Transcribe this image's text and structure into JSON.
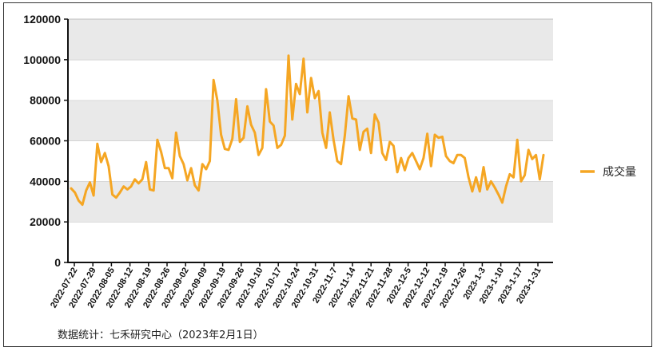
{
  "footnote": "数据统计：七禾研究中心（2023年2月1日）",
  "chart_data": {
    "type": "line",
    "title": "",
    "xlabel": "",
    "ylabel": "",
    "ylim": [
      0,
      120000
    ],
    "yticks": [
      0,
      20000,
      40000,
      60000,
      80000,
      100000,
      120000
    ],
    "ytick_labels": [
      "0",
      "20000",
      "40000",
      "60000",
      "80000",
      "100000",
      "120000"
    ],
    "grid": "horizontal bands",
    "legend_position": "right",
    "x_tick_labels": [
      "2022-07-22",
      "2022-07-29",
      "2022-08-05",
      "2022-08-12",
      "2022-08-19",
      "2022-08-26",
      "2022-09-02",
      "2022-09-09",
      "2022-09-19",
      "2022-09-26",
      "2022-10-10",
      "2022-10-17",
      "2022-10-24",
      "2022-10-31",
      "2022-11-7",
      "2022-11-14",
      "2022-11-21",
      "2022-11-28",
      "2022-12-5",
      "2022-12-12",
      "2022-12-19",
      "2022-12-26",
      "2023-1-3",
      "2023-1-10",
      "2023-1-17",
      "2023-1-31"
    ],
    "series": [
      {
        "name": "成交量",
        "color": "#f5a623",
        "values": [
          36500,
          34500,
          30500,
          28500,
          35500,
          39500,
          33000,
          58500,
          49500,
          54000,
          47500,
          33500,
          32000,
          34500,
          37500,
          36000,
          37500,
          41000,
          39000,
          41000,
          49500,
          36000,
          35500,
          60500,
          54500,
          46500,
          46500,
          41500,
          64000,
          52500,
          48500,
          40500,
          46500,
          38000,
          35500,
          48500,
          46000,
          50000,
          90000,
          80000,
          63000,
          56000,
          55500,
          61000,
          80500,
          59500,
          61500,
          77000,
          68000,
          64000,
          53000,
          56500,
          85500,
          69500,
          67500,
          56500,
          58000,
          62500,
          102000,
          70500,
          88000,
          83000,
          100500,
          74000,
          91000,
          81000,
          84500,
          64000,
          56500,
          74000,
          60500,
          50000,
          48500,
          62500,
          82000,
          71000,
          70500,
          55500,
          64500,
          66000,
          54000,
          73000,
          69000,
          54000,
          50500,
          59500,
          57500,
          44500,
          51500,
          45500,
          51500,
          54000,
          50000,
          46000,
          51500,
          63500,
          47500,
          63000,
          61500,
          62000,
          52500,
          50000,
          49000,
          53000,
          53000,
          51500,
          42000,
          35000,
          42000,
          35000,
          47000,
          36000,
          40000,
          37000,
          33500,
          29500,
          37500,
          43500,
          42000,
          60500,
          40000,
          43000,
          55500,
          51000,
          53000,
          41000,
          53000
        ]
      }
    ]
  }
}
